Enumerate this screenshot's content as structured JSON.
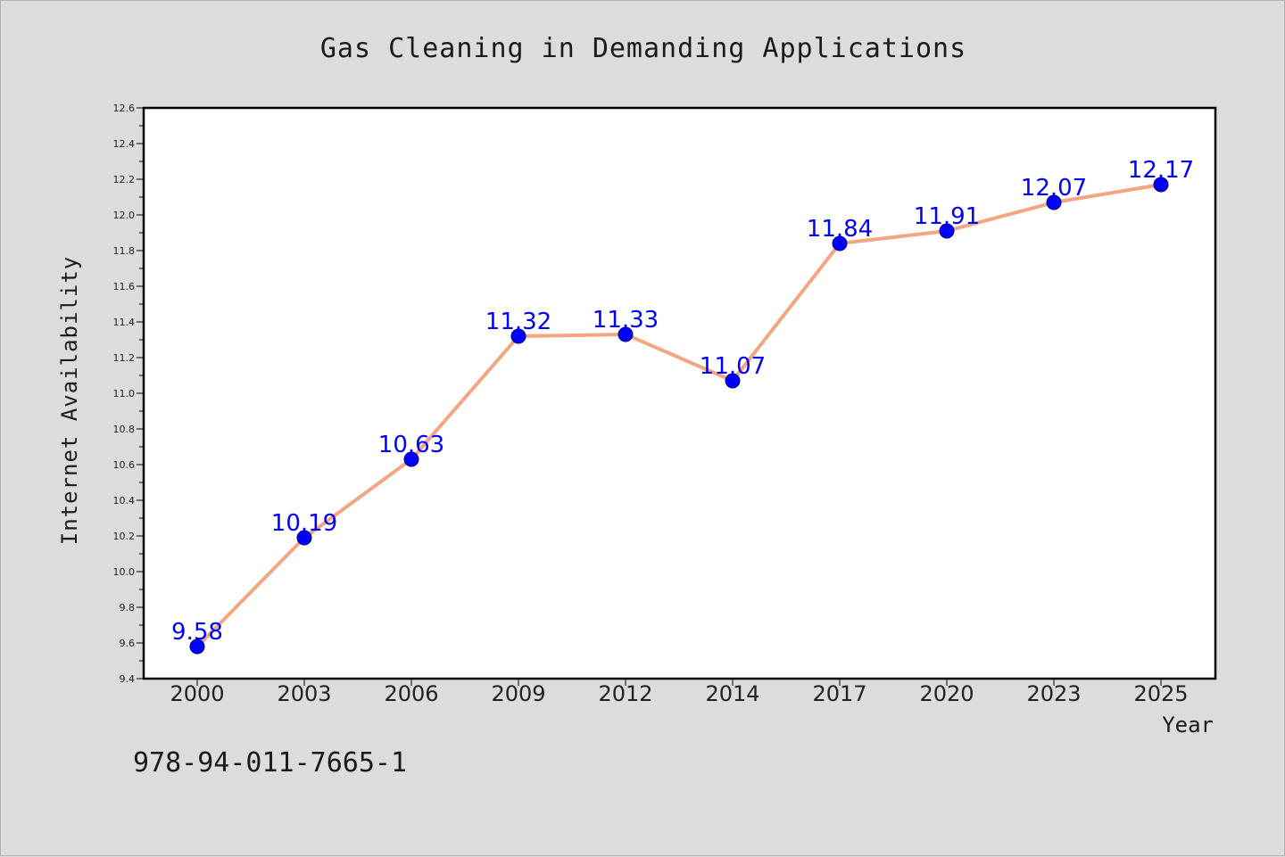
{
  "chart_data": {
    "type": "line",
    "title": "Gas Cleaning in Demanding Applications",
    "xlabel": "Year",
    "ylabel": "Internet Availability",
    "categories": [
      "2000",
      "2003",
      "2006",
      "2009",
      "2012",
      "2014",
      "2017",
      "2020",
      "2023",
      "2025"
    ],
    "series": [
      {
        "values": [
          9.58,
          10.19,
          10.63,
          11.32,
          11.33,
          11.07,
          11.84,
          11.91,
          12.07,
          12.17
        ],
        "line_color": "#f4a582",
        "marker_color": "#0000ff"
      }
    ],
    "data_labels": [
      "9.58",
      "10.19",
      "10.63",
      "11.32",
      "11.33",
      "11.07",
      "11.84",
      "11.91",
      "12.07",
      "12.17"
    ],
    "ylim": [
      9.4,
      12.6
    ],
    "yticks": [
      "9.4",
      "9.6",
      "9.8",
      "10.0",
      "10.2",
      "10.4",
      "10.6",
      "10.8",
      "11.0",
      "11.2",
      "11.4",
      "11.6",
      "11.8",
      "12.0",
      "12.2",
      "12.4",
      "12.6"
    ],
    "grid": false,
    "legend": "none"
  },
  "footnote": "978-94-011-7665-1"
}
